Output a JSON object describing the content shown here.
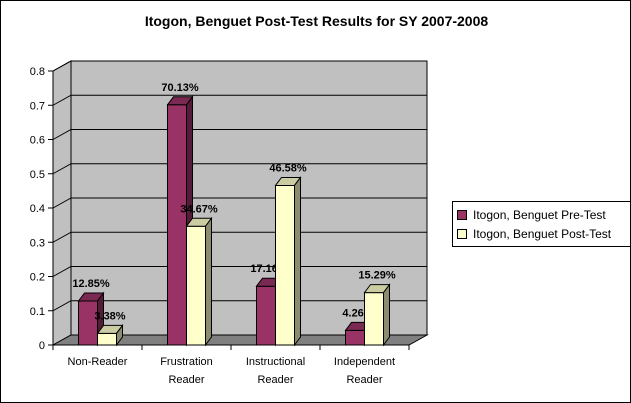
{
  "chart_data": {
    "type": "bar",
    "title": "Itogon, Benguet Post-Test Results for SY 2007-2008",
    "categories": [
      [
        "Non-Reader"
      ],
      [
        "Frustration",
        "Reader"
      ],
      [
        "Instructional",
        "Reader"
      ],
      [
        "Independent",
        "Reader"
      ]
    ],
    "series": [
      {
        "name": "Itogon, Benguet Pre-Test",
        "values": [
          0.1285,
          0.7013,
          0.1716,
          0.0426
        ],
        "labels": [
          "12.85%",
          "70.13%",
          "17.16%",
          "4.26%"
        ],
        "color": "#993366"
      },
      {
        "name": "Itogon, Benguet Post-Test",
        "values": [
          0.0338,
          0.3467,
          0.4658,
          0.1529
        ],
        "labels": [
          "3.38%",
          "34.67%",
          "46.58%",
          "15.29%"
        ],
        "color": "#FFFFCC"
      }
    ],
    "yticks": [
      "0",
      "0.1",
      "0.2",
      "0.3",
      "0.4",
      "0.5",
      "0.6",
      "0.7",
      "0.8"
    ],
    "ylim": [
      0,
      0.8
    ],
    "grid": true,
    "legend": "right",
    "wall_color": "#C0C0C0",
    "floor_color": "#808080"
  }
}
